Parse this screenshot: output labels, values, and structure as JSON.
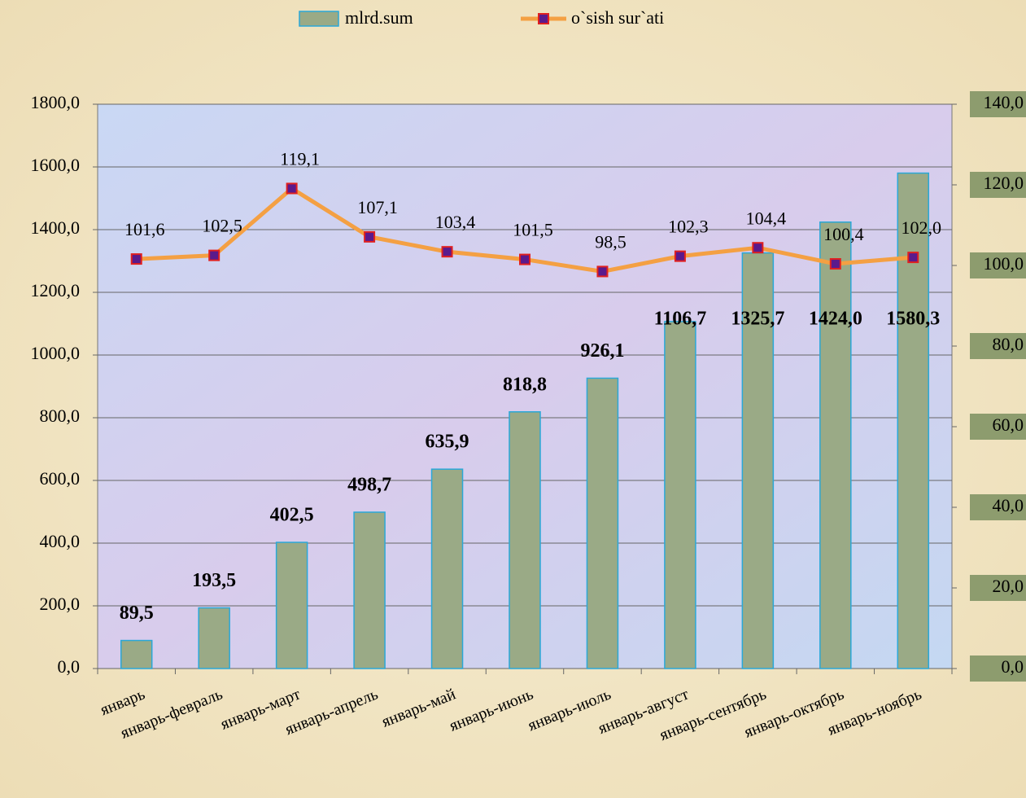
{
  "chart_data": {
    "type": "bar_line",
    "categories": [
      "январь",
      "январь-февраль",
      "январь-март",
      "январь-апрель",
      "январь-май",
      "январь-июнь",
      "январь-июль",
      "январь-август",
      "январь-сентябрь",
      "январь-октябрь",
      "январь-ноябрь"
    ],
    "series": [
      {
        "name": "mlrd.sum",
        "type": "bar",
        "color": "#9aaa86",
        "edge_color": "#2aa8d8",
        "values": [
          89.5,
          193.5,
          402.5,
          498.7,
          635.9,
          818.8,
          926.1,
          1106.7,
          1325.7,
          1424.0,
          1580.3
        ],
        "value_labels": [
          "89,5",
          "193,5",
          "402,5",
          "498,7",
          "635,9",
          "818,8",
          "926,1",
          "1106,7",
          "1325,7",
          "1424,0",
          "1580,3"
        ]
      },
      {
        "name": "o`sish sur`ati",
        "type": "line",
        "axis": "y2",
        "color": "#f4a043",
        "marker_color": "#5a1a8c",
        "marker_edge": "#e02020",
        "values": [
          101.6,
          102.5,
          119.1,
          107.1,
          103.4,
          101.5,
          98.5,
          102.3,
          104.4,
          100.4,
          102.0
        ],
        "value_labels": [
          "101,6",
          "102,5",
          "119,1",
          "107,1",
          "103,4",
          "101,5",
          "98,5",
          "102,3",
          "104,4",
          "100,4",
          "102,0"
        ]
      }
    ],
    "ylim": [
      0,
      1800
    ],
    "yticks": [
      {
        "value": 0,
        "label": "0,0"
      },
      {
        "value": 200,
        "label": "200,0"
      },
      {
        "value": 400,
        "label": "400,0"
      },
      {
        "value": 600,
        "label": "600,0"
      },
      {
        "value": 800,
        "label": "800,0"
      },
      {
        "value": 1000,
        "label": "1000,0"
      },
      {
        "value": 1200,
        "label": "1200,0"
      },
      {
        "value": 1400,
        "label": "1400,0"
      },
      {
        "value": 1600,
        "label": "1600,0"
      },
      {
        "value": 1800,
        "label": "1800,0"
      }
    ],
    "y2lim": [
      0,
      140
    ],
    "y2ticks": [
      {
        "value": 0,
        "label": "0,0"
      },
      {
        "value": 20,
        "label": "20,0"
      },
      {
        "value": 40,
        "label": "40,0"
      },
      {
        "value": 60,
        "label": "60,0"
      },
      {
        "value": 80,
        "label": "80,0"
      },
      {
        "value": 100,
        "label": "100,0"
      },
      {
        "value": 120,
        "label": "120,0"
      },
      {
        "value": 140,
        "label": "140,0"
      }
    ],
    "grid": true,
    "legend": "top"
  }
}
